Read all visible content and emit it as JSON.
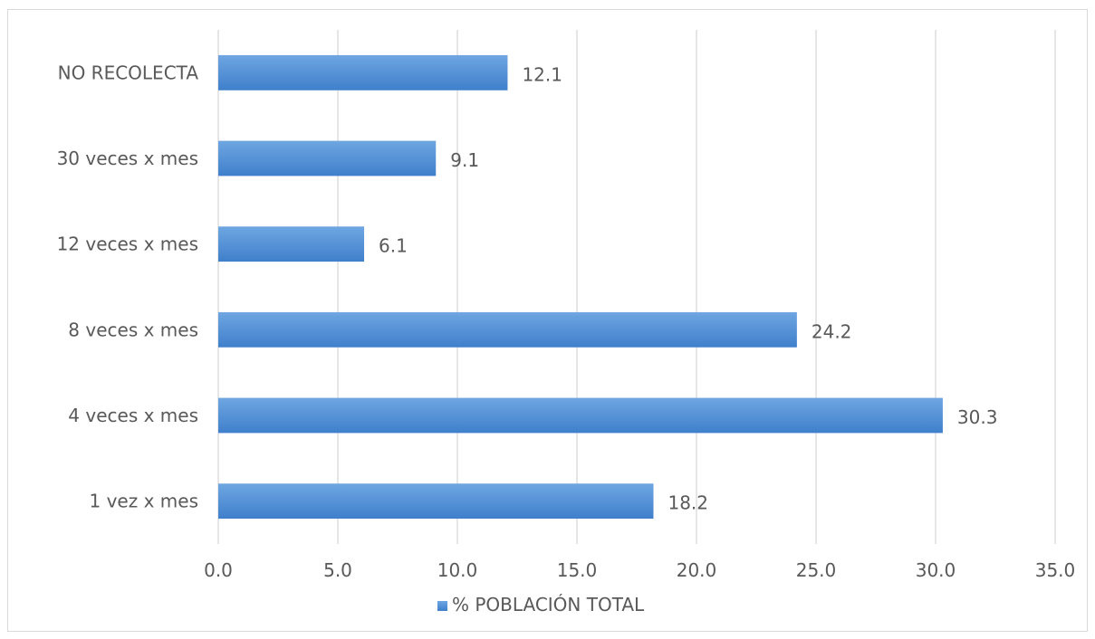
{
  "chart_data": {
    "type": "bar",
    "orientation": "horizontal",
    "categories": [
      "NO RECOLECTA",
      "30 veces x mes",
      "12 veces x mes",
      "8 veces x mes",
      "4 veces x mes",
      "1 vez x mes"
    ],
    "series": [
      {
        "name": "% POBLACIÓN TOTAL",
        "values": [
          12.1,
          9.1,
          6.1,
          24.2,
          30.3,
          18.2
        ],
        "color": "#4a8ad4"
      }
    ],
    "data_labels": [
      "12.1",
      "9.1",
      "6.1",
      "24.2",
      "30.3",
      "18.2"
    ],
    "xlim": [
      0,
      35
    ],
    "xticks": [
      "0.0",
      "5.0",
      "10.0",
      "15.0",
      "20.0",
      "25.0",
      "30.0",
      "35.0"
    ],
    "grid": "vertical",
    "legend": "bottom",
    "gridline_color": "#d9d9d9",
    "bar_gradient": [
      "#6fa6e2",
      "#3f7fcb"
    ]
  }
}
